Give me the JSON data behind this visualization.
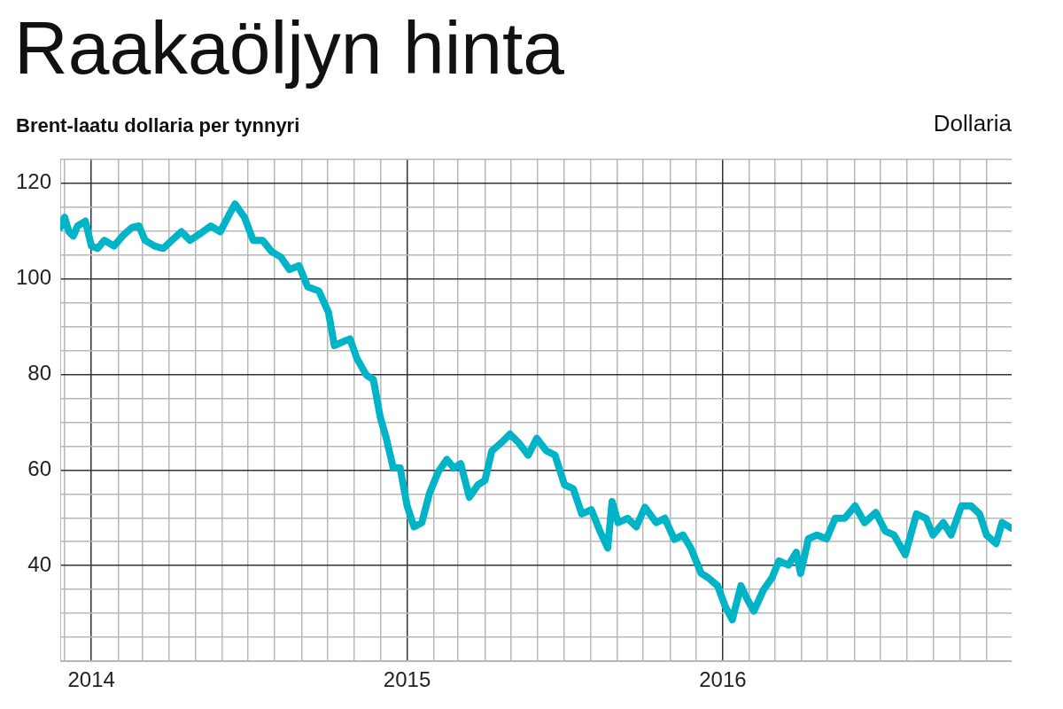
{
  "chart_data": {
    "type": "line",
    "title": "Raakaöljyn hinta",
    "subtitle": "Brent-laatu dollaria per tynnyri",
    "ylabel": "Dollaria",
    "x": [
      "2013-11-26",
      "2013-12-01",
      "2013-12-06",
      "2013-12-11",
      "2013-12-16",
      "2013-12-25",
      "2014-01-01",
      "2014-01-08",
      "2014-01-16",
      "2014-01-27",
      "2014-02-06",
      "2014-02-17",
      "2014-02-25",
      "2014-03-04",
      "2014-03-15",
      "2014-03-25",
      "2014-04-04",
      "2014-04-15",
      "2014-04-25",
      "2014-05-06",
      "2014-05-19",
      "2014-05-30",
      "2014-06-09",
      "2014-06-16",
      "2014-06-27",
      "2014-07-07",
      "2014-07-18",
      "2014-07-28",
      "2014-08-08",
      "2014-08-18",
      "2014-08-29",
      "2014-09-08",
      "2014-09-21",
      "2014-10-02",
      "2014-10-09",
      "2014-10-20",
      "2014-10-27",
      "2014-11-04",
      "2014-11-15",
      "2014-11-23",
      "2014-12-01",
      "2014-12-08",
      "2014-12-16",
      "2014-12-24",
      "2015-01-01",
      "2015-01-09",
      "2015-01-18",
      "2015-01-27",
      "2015-02-06",
      "2015-02-16",
      "2015-02-24",
      "2015-03-04",
      "2015-03-14",
      "2015-03-24",
      "2015-04-01",
      "2015-04-09",
      "2015-04-20",
      "2015-04-30",
      "2015-05-10",
      "2015-05-21",
      "2015-05-31",
      "2015-06-11",
      "2015-06-21",
      "2015-07-02",
      "2015-07-12",
      "2015-07-22",
      "2015-08-02",
      "2015-08-12",
      "2015-08-21",
      "2015-08-26",
      "2015-09-02",
      "2015-09-13",
      "2015-09-23",
      "2015-10-03",
      "2015-10-16",
      "2015-10-26",
      "2015-11-06",
      "2015-11-16",
      "2015-11-25",
      "2015-12-07",
      "2015-12-15",
      "2015-12-26",
      "2016-01-04",
      "2016-01-12",
      "2016-01-22",
      "2016-01-29",
      "2016-02-06",
      "2016-02-17",
      "2016-02-27",
      "2016-03-06",
      "2016-03-17",
      "2016-03-26",
      "2016-03-31",
      "2016-04-09",
      "2016-04-19",
      "2016-04-30",
      "2016-05-10",
      "2016-05-21",
      "2016-06-02",
      "2016-06-13",
      "2016-06-26",
      "2016-07-07",
      "2016-07-17",
      "2016-07-30",
      "2016-08-12",
      "2016-08-23",
      "2016-08-31",
      "2016-09-12",
      "2016-09-21",
      "2016-10-03",
      "2016-10-14",
      "2016-10-24",
      "2016-11-01",
      "2016-11-12",
      "2016-11-19",
      "2016-11-30"
    ],
    "series": [
      {
        "color": "#00b4c8",
        "values": [
          110.7,
          112.8,
          109.8,
          108.9,
          111,
          112,
          106.8,
          106.3,
          108,
          106.8,
          108.9,
          110.7,
          111,
          108,
          106.8,
          106.3,
          108,
          109.8,
          108,
          109.3,
          111,
          109.8,
          113.3,
          115.6,
          112.8,
          108,
          108,
          105.7,
          104.5,
          101.9,
          102.7,
          98.3,
          97.4,
          93,
          86,
          86.9,
          87.4,
          83.3,
          79.8,
          78.9,
          71,
          66.6,
          60.4,
          60.4,
          52.5,
          48.1,
          49,
          55.2,
          59.6,
          62.2,
          60.4,
          61.3,
          54.3,
          56.9,
          57.8,
          64,
          65.7,
          67.5,
          65.7,
          63.1,
          66.6,
          64,
          63.1,
          56.9,
          56.1,
          50.8,
          51.7,
          47.2,
          43.7,
          53.4,
          49,
          49.9,
          48.1,
          52.2,
          49,
          49.9,
          45.5,
          46.4,
          43.7,
          38.4,
          37.5,
          35.8,
          31.4,
          28.7,
          35.8,
          33.1,
          30.5,
          34.9,
          37.5,
          41,
          40.1,
          42.8,
          38.4,
          45.6,
          46.4,
          45.6,
          49.9,
          49.9,
          52.5,
          49,
          51.1,
          47.2,
          46.4,
          42.3,
          50.8,
          49.9,
          46.4,
          49,
          46.4,
          52.5,
          52.5,
          50.8,
          46.4,
          44.6,
          49,
          47.8
        ]
      }
    ],
    "xlim": [
      "2013-11-26",
      "2016-11-30"
    ],
    "xticks": [
      {
        "value": "2013-12",
        "label": null
      },
      {
        "value": "2014-01",
        "label": "2014"
      },
      {
        "value": "2014-02",
        "label": null
      },
      {
        "value": "2014-03",
        "label": null
      },
      {
        "value": "2014-04",
        "label": null
      },
      {
        "value": "2014-05",
        "label": null
      },
      {
        "value": "2014-06",
        "label": null
      },
      {
        "value": "2014-07",
        "label": null
      },
      {
        "value": "2014-08",
        "label": null
      },
      {
        "value": "2014-09",
        "label": null
      },
      {
        "value": "2014-10",
        "label": null
      },
      {
        "value": "2014-11",
        "label": null
      },
      {
        "value": "2014-12",
        "label": null
      },
      {
        "value": "2015-01",
        "label": "2015"
      },
      {
        "value": "2015-02",
        "label": null
      },
      {
        "value": "2015-03",
        "label": null
      },
      {
        "value": "2015-04",
        "label": null
      },
      {
        "value": "2015-05",
        "label": null
      },
      {
        "value": "2015-06",
        "label": null
      },
      {
        "value": "2015-07",
        "label": null
      },
      {
        "value": "2015-08",
        "label": null
      },
      {
        "value": "2015-09",
        "label": null
      },
      {
        "value": "2015-10",
        "label": null
      },
      {
        "value": "2015-11",
        "label": null
      },
      {
        "value": "2015-12",
        "label": null
      },
      {
        "value": "2016-01",
        "label": "2016"
      },
      {
        "value": "2016-02",
        "label": null
      },
      {
        "value": "2016-03",
        "label": null
      },
      {
        "value": "2016-04",
        "label": null
      },
      {
        "value": "2016-05",
        "label": null
      },
      {
        "value": "2016-06",
        "label": null
      },
      {
        "value": "2016-07",
        "label": null
      },
      {
        "value": "2016-08",
        "label": null
      },
      {
        "value": "2016-09",
        "label": null
      },
      {
        "value": "2016-10",
        "label": null
      },
      {
        "value": "2016-11",
        "label": null
      }
    ],
    "ylim": [
      20,
      125
    ],
    "yticks": [
      {
        "value": 20,
        "label": null
      },
      {
        "value": 25,
        "label": null
      },
      {
        "value": 30,
        "label": null
      },
      {
        "value": 35,
        "label": null
      },
      40,
      {
        "value": 45,
        "label": null
      },
      {
        "value": 50,
        "label": null
      },
      {
        "value": 55,
        "label": null
      },
      60,
      {
        "value": 65,
        "label": null
      },
      {
        "value": 70,
        "label": null
      },
      {
        "value": 75,
        "label": null
      },
      80,
      {
        "value": 85,
        "label": null
      },
      {
        "value": 90,
        "label": null
      },
      {
        "value": 95,
        "label": null
      },
      100,
      {
        "value": 105,
        "label": null
      },
      {
        "value": 110,
        "label": null
      },
      {
        "value": 115,
        "label": null
      },
      120,
      {
        "value": 125,
        "label": null
      }
    ],
    "grid": true,
    "legend": false
  }
}
